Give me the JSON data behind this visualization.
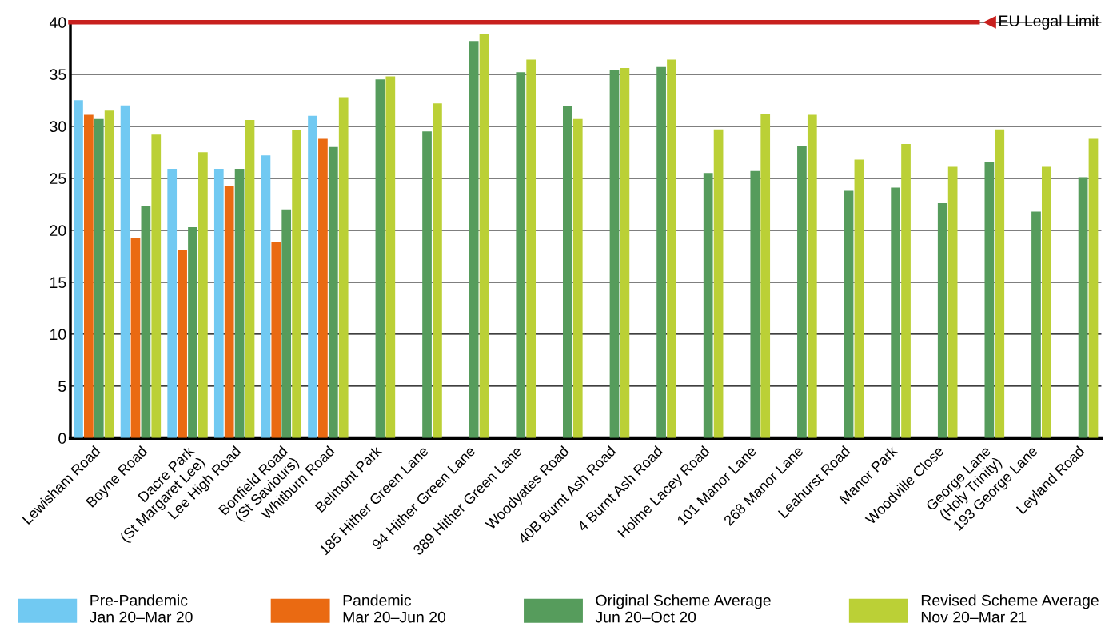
{
  "chart_data": {
    "type": "bar",
    "categories": [
      "Lewisham Road",
      "Boyne Road",
      "Dacre Park\n(St Margaret Lee)",
      "Lee High Road",
      "Bonfield Road\n(St Saviours)",
      "Whitburn Road",
      "Belmont Park",
      "185 Hither Green Lane",
      "94 Hither Green Lane",
      "389 Hither Green Lane",
      "Woodyates Road",
      "40B Burnt Ash Road",
      "4 Burnt Ash Road",
      "Holme Lacey Road",
      "101 Manor Lane",
      "268 Manor Lane",
      "Leahurst Road",
      "Manor Park",
      "Woodville Close",
      "George Lane\n(Holy Trinity)",
      "193 George Lane",
      "Leyland Road"
    ],
    "series": [
      {
        "name": "Pre-Pandemic\nJan 20–Mar 20",
        "color": "#71c9f2",
        "values": [
          32.5,
          32.0,
          25.9,
          25.9,
          27.2,
          31.0,
          null,
          null,
          null,
          null,
          null,
          null,
          null,
          null,
          null,
          null,
          null,
          null,
          null,
          null,
          null,
          null
        ]
      },
      {
        "name": "Pandemic\nMar 20–Jun 20",
        "color": "#ea6a12",
        "values": [
          31.1,
          19.3,
          18.1,
          24.3,
          18.9,
          28.8,
          null,
          null,
          null,
          null,
          null,
          null,
          null,
          null,
          null,
          null,
          null,
          null,
          null,
          null,
          null,
          null
        ]
      },
      {
        "name": "Original Scheme Average\nJun 20–Oct 20",
        "color": "#569c5c",
        "values": [
          30.7,
          22.3,
          20.3,
          25.9,
          22.0,
          28.0,
          34.5,
          29.5,
          38.2,
          35.2,
          31.9,
          35.4,
          35.7,
          25.5,
          25.7,
          28.1,
          23.8,
          24.1,
          22.6,
          26.6,
          21.8,
          25.1
        ]
      },
      {
        "name": "Revised Scheme Average\nNov 20–Mar 21",
        "color": "#bbd036",
        "values": [
          31.5,
          29.2,
          27.5,
          30.6,
          29.6,
          32.8,
          34.8,
          32.2,
          38.9,
          36.4,
          30.7,
          35.6,
          36.4,
          29.7,
          31.2,
          31.1,
          26.8,
          28.3,
          26.1,
          29.7,
          26.1,
          28.8
        ]
      }
    ],
    "ylim": [
      0,
      40
    ],
    "yticks": [
      0,
      5,
      10,
      15,
      20,
      25,
      30,
      35,
      40
    ],
    "ref_lines": [
      {
        "axis": "y",
        "value": 40,
        "label": "EU Legal Limit",
        "color": "#c8201e"
      }
    ],
    "grid": "y",
    "legend": "bottom"
  }
}
